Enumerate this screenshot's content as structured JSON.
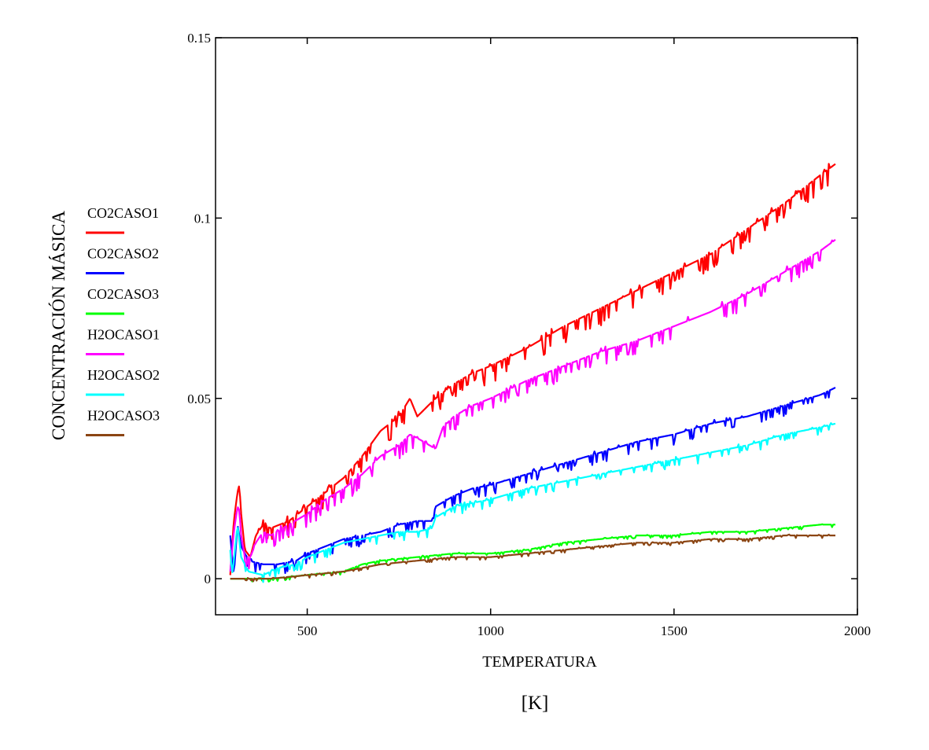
{
  "chart_data": {
    "type": "line",
    "title": "",
    "xlabel": "TEMPERATURA",
    "xunit": "[K]",
    "ylabel": "CONCENTRACIÓN  MÁSICA",
    "xlim": [
      250,
      2000
    ],
    "ylim": [
      -0.01,
      0.15
    ],
    "xticks": [
      500,
      1000,
      1500,
      2000
    ],
    "xtick_labels": [
      "500",
      "1000",
      "1500",
      "2000"
    ],
    "yticks": [
      0,
      0.05,
      0.1,
      0.15
    ],
    "ytick_labels": [
      "0",
      "0.05",
      "0.1",
      "0.15"
    ],
    "grid": false,
    "legend_position": "left, outside plot",
    "series": [
      {
        "name": "CO2CASO1",
        "color": "#ff0000",
        "x": [
          290,
          300,
          310,
          315,
          320,
          330,
          345,
          360,
          380,
          400,
          450,
          500,
          550,
          600,
          650,
          700,
          750,
          780,
          800,
          850,
          900,
          950,
          1000,
          1100,
          1200,
          1300,
          1400,
          1500,
          1600,
          1700,
          1800,
          1900,
          1940
        ],
        "y": [
          0.001,
          0.016,
          0.024,
          0.026,
          0.018,
          0.008,
          0.006,
          0.012,
          0.015,
          0.014,
          0.016,
          0.02,
          0.024,
          0.028,
          0.034,
          0.041,
          0.045,
          0.05,
          0.045,
          0.05,
          0.054,
          0.057,
          0.059,
          0.064,
          0.07,
          0.075,
          0.08,
          0.085,
          0.09,
          0.097,
          0.104,
          0.112,
          0.115
        ],
        "jitter": 0.003
      },
      {
        "name": "CO2CASO2",
        "color": "#0000ff",
        "x": [
          290,
          300,
          310,
          320,
          340,
          380,
          420,
          470,
          500,
          550,
          600,
          650,
          700,
          750,
          800,
          840,
          850,
          900,
          950,
          1000,
          1100,
          1200,
          1300,
          1400,
          1500,
          1600,
          1700,
          1800,
          1900,
          1940
        ],
        "y": [
          0.012,
          0.001,
          0.015,
          0.009,
          0.005,
          0.004,
          0.004,
          0.005,
          0.007,
          0.009,
          0.011,
          0.012,
          0.013,
          0.015,
          0.016,
          0.016,
          0.02,
          0.023,
          0.025,
          0.026,
          0.029,
          0.032,
          0.035,
          0.038,
          0.04,
          0.043,
          0.045,
          0.048,
          0.051,
          0.053
        ],
        "jitter": 0.0018
      },
      {
        "name": "CO2CASO3",
        "color": "#00ff00",
        "x": [
          290,
          400,
          500,
          600,
          650,
          700,
          800,
          900,
          1000,
          1100,
          1200,
          1300,
          1400,
          1500,
          1600,
          1700,
          1800,
          1900,
          1940
        ],
        "y": [
          0.0,
          0.0,
          0.001,
          0.002,
          0.004,
          0.005,
          0.006,
          0.007,
          0.007,
          0.008,
          0.01,
          0.011,
          0.012,
          0.012,
          0.013,
          0.013,
          0.014,
          0.015,
          0.015
        ],
        "jitter": 0.0005
      },
      {
        "name": "H2OCASO1",
        "color": "#ff00ff",
        "x": [
          290,
          300,
          310,
          315,
          320,
          330,
          345,
          360,
          380,
          400,
          450,
          500,
          550,
          600,
          650,
          700,
          750,
          780,
          800,
          850,
          870,
          900,
          950,
          1000,
          1100,
          1200,
          1300,
          1400,
          1500,
          1600,
          1700,
          1800,
          1900,
          1940
        ],
        "y": [
          0.002,
          0.013,
          0.02,
          0.019,
          0.012,
          0.006,
          0.006,
          0.01,
          0.013,
          0.012,
          0.015,
          0.018,
          0.022,
          0.025,
          0.029,
          0.034,
          0.037,
          0.04,
          0.039,
          0.036,
          0.042,
          0.045,
          0.048,
          0.05,
          0.055,
          0.059,
          0.063,
          0.066,
          0.07,
          0.074,
          0.079,
          0.085,
          0.091,
          0.094
        ],
        "jitter": 0.0025
      },
      {
        "name": "H2OCASO2",
        "color": "#00ffff",
        "x": [
          290,
          295,
          300,
          310,
          320,
          340,
          380,
          420,
          470,
          500,
          550,
          600,
          650,
          700,
          750,
          800,
          840,
          850,
          900,
          950,
          1000,
          1100,
          1200,
          1300,
          1400,
          1500,
          1600,
          1700,
          1800,
          1900,
          1940
        ],
        "y": [
          0.008,
          0.001,
          0.005,
          0.015,
          0.006,
          0.002,
          0.001,
          0.003,
          0.004,
          0.006,
          0.008,
          0.01,
          0.011,
          0.012,
          0.013,
          0.013,
          0.014,
          0.017,
          0.02,
          0.021,
          0.022,
          0.025,
          0.027,
          0.029,
          0.031,
          0.033,
          0.035,
          0.037,
          0.04,
          0.042,
          0.043
        ],
        "jitter": 0.0015
      },
      {
        "name": "H2OCASO3",
        "color": "#8b4513",
        "x": [
          290,
          400,
          500,
          600,
          650,
          700,
          800,
          900,
          1000,
          1100,
          1200,
          1300,
          1400,
          1500,
          1600,
          1700,
          1800,
          1900,
          1940
        ],
        "y": [
          0.0,
          0.0,
          0.001,
          0.002,
          0.003,
          0.004,
          0.005,
          0.006,
          0.006,
          0.007,
          0.008,
          0.009,
          0.01,
          0.01,
          0.011,
          0.011,
          0.012,
          0.012,
          0.012
        ],
        "jitter": 0.0005
      }
    ]
  }
}
